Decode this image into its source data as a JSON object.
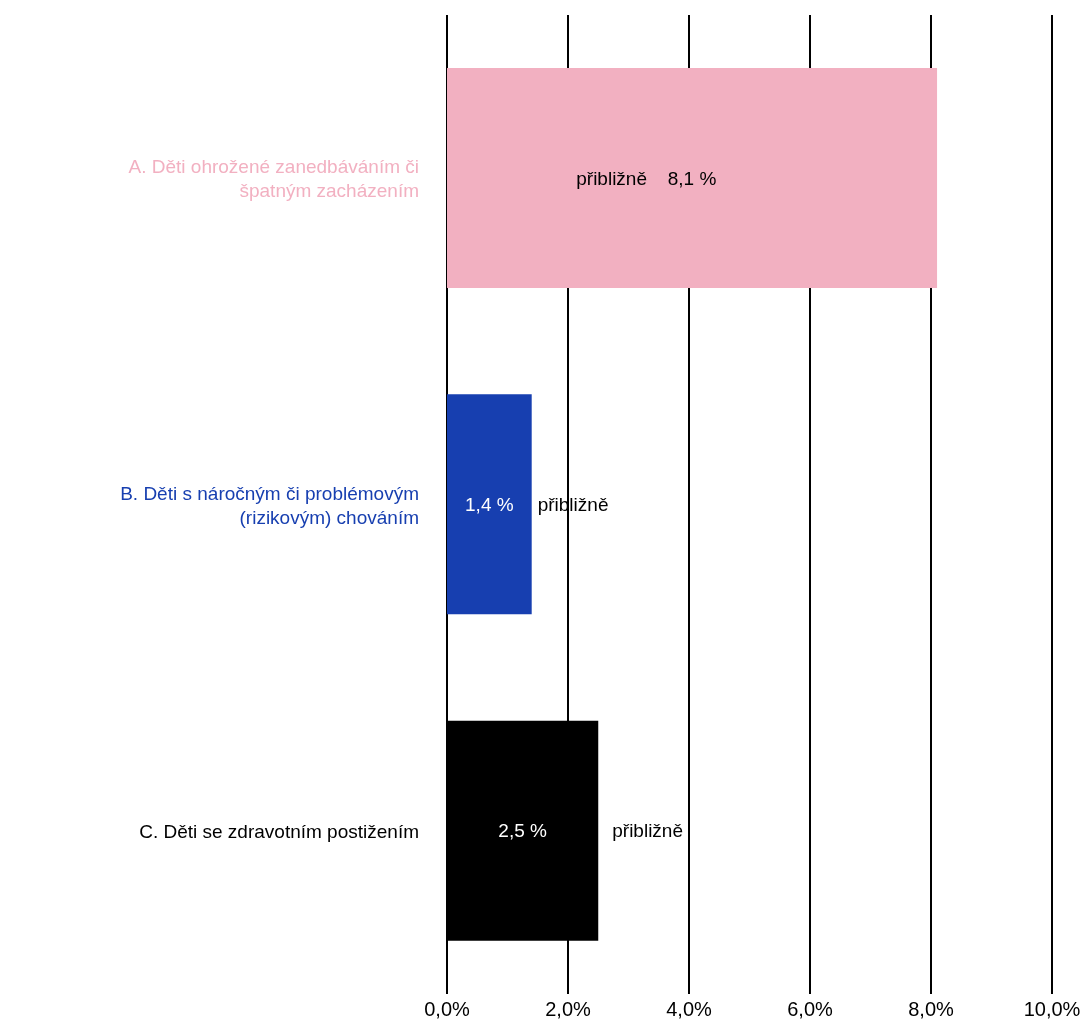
{
  "chart_data": {
    "type": "bar",
    "orientation": "horizontal",
    "categories": [
      "A. Děti ohrožené zanedbáváním či špatným zacházením",
      "B. Děti s náročným či problémovým (rizikovým) chováním",
      "C. Děti se zdravotním postižením"
    ],
    "values": [
      8.1,
      1.4,
      2.5
    ],
    "colors": [
      "#f2b0c1",
      "#173fb0",
      "#000000"
    ],
    "value_labels": [
      "8,1 %",
      "1,4 %",
      "2,5 %"
    ],
    "xlim": [
      0,
      10
    ],
    "xticks": [
      {
        "value": 0,
        "label": "0,0%"
      },
      {
        "value": 2,
        "label": "2,0%"
      },
      {
        "value": 4,
        "label": "4,0%"
      },
      {
        "value": 6,
        "label": "6,0%"
      },
      {
        "value": 8,
        "label": "8,0%"
      },
      {
        "value": 10,
        "label": "10,0%"
      }
    ],
    "grid": "x",
    "legend": false,
    "annotations": [
      "přibližně",
      "přibližně",
      "přibližně"
    ]
  }
}
